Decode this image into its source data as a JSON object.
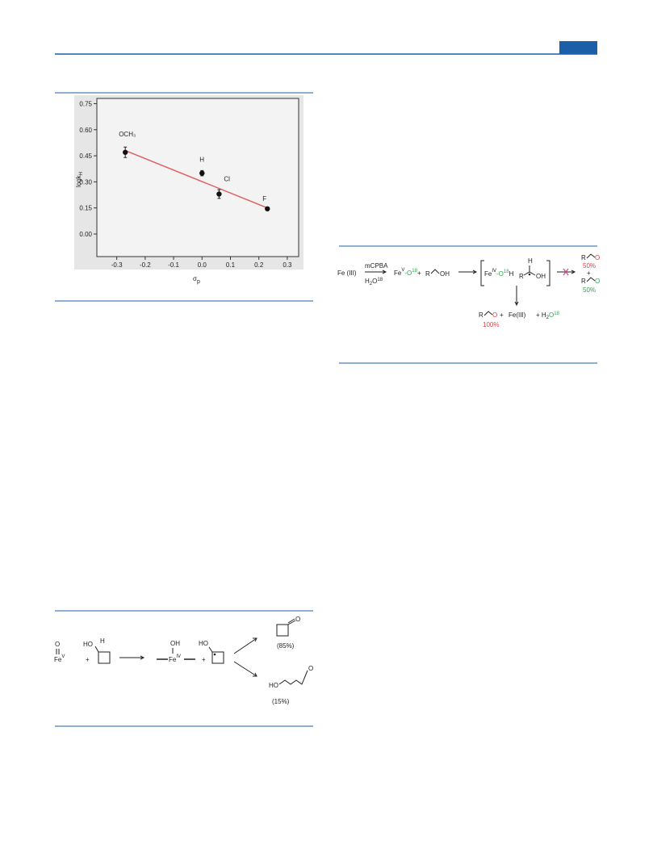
{
  "chart_data": {
    "type": "scatter",
    "xlabel": "σ",
    "xlabel_sub": "p",
    "ylabel": "logk",
    "ylabel_sub": "H",
    "x": [
      -0.27,
      0,
      0.06,
      0.23
    ],
    "values": [
      0.47,
      0.35,
      0.23,
      0.145
    ],
    "errors": [
      0.03,
      0.015,
      0.025,
      0.01
    ],
    "point_labels": [
      "OCH₃",
      "H",
      "Cl",
      "F"
    ],
    "color": "#111111",
    "fit": {
      "color": "#e06060",
      "x": [
        -0.27,
        0.23
      ],
      "values": [
        0.48,
        0.15
      ]
    },
    "xlim": [
      -0.37,
      0.34
    ],
    "ylim": [
      -0.13,
      0.78
    ],
    "xticks": [
      -0.3,
      -0.2,
      -0.1,
      {
        "value": 0,
        "label": "0.0"
      },
      0.1,
      0.2,
      0.3
    ],
    "yticks": [
      {
        "value": 0,
        "label": "0.00"
      },
      0.15,
      {
        "value": 0.3,
        "label": "0.30"
      },
      0.45,
      {
        "value": 0.6,
        "label": "0.60"
      },
      0.75
    ]
  },
  "scheme_1": {
    "oxo": "O",
    "fe": "Fe",
    "fe_sup": "V",
    "plus_1": "+",
    "ho_1": "HO",
    "h": "H",
    "oh": "OH",
    "fe2": "Fe",
    "fe2_sup": "IV",
    "plus_2": "+",
    "ho_2": "HO",
    "ketone_o": "O",
    "yield_1": "(85%)",
    "ho_3": "HO",
    "aldehyde_o": "O",
    "yield_2": "(15%)"
  },
  "scheme_2": {
    "fe3": "Fe (III)",
    "reagent": "mCPBA",
    "water": "H",
    "water_sub": "2",
    "water_o": "O",
    "water_sup": "18",
    "fe5": "Fe",
    "fe5_sup": "V",
    "fe5_o": "-O",
    "fe5_o_sup": "18",
    "plus_1": "+",
    "r1": "R",
    "oh1": "OH",
    "fe4": "Fe",
    "fe4_sup": "IV",
    "fe4_o": "-O",
    "fe4_o_sup": "18",
    "fe4_h": "H",
    "h2": "H",
    "r2": "R",
    "oh2": "OH",
    "r3": "R",
    "o3": "O",
    "pct_1": "50%",
    "plus_2": "+",
    "r4": "R",
    "o4": "O",
    "pct_2": "50%",
    "r5": "R",
    "o5": "O",
    "plus_3": "+",
    "fe_final": "Fe(III)",
    "plus_4": "+ H",
    "h2o_sub": "2",
    "h2o_o": "O",
    "h2o_sup": "18",
    "pct_3": "100%"
  }
}
